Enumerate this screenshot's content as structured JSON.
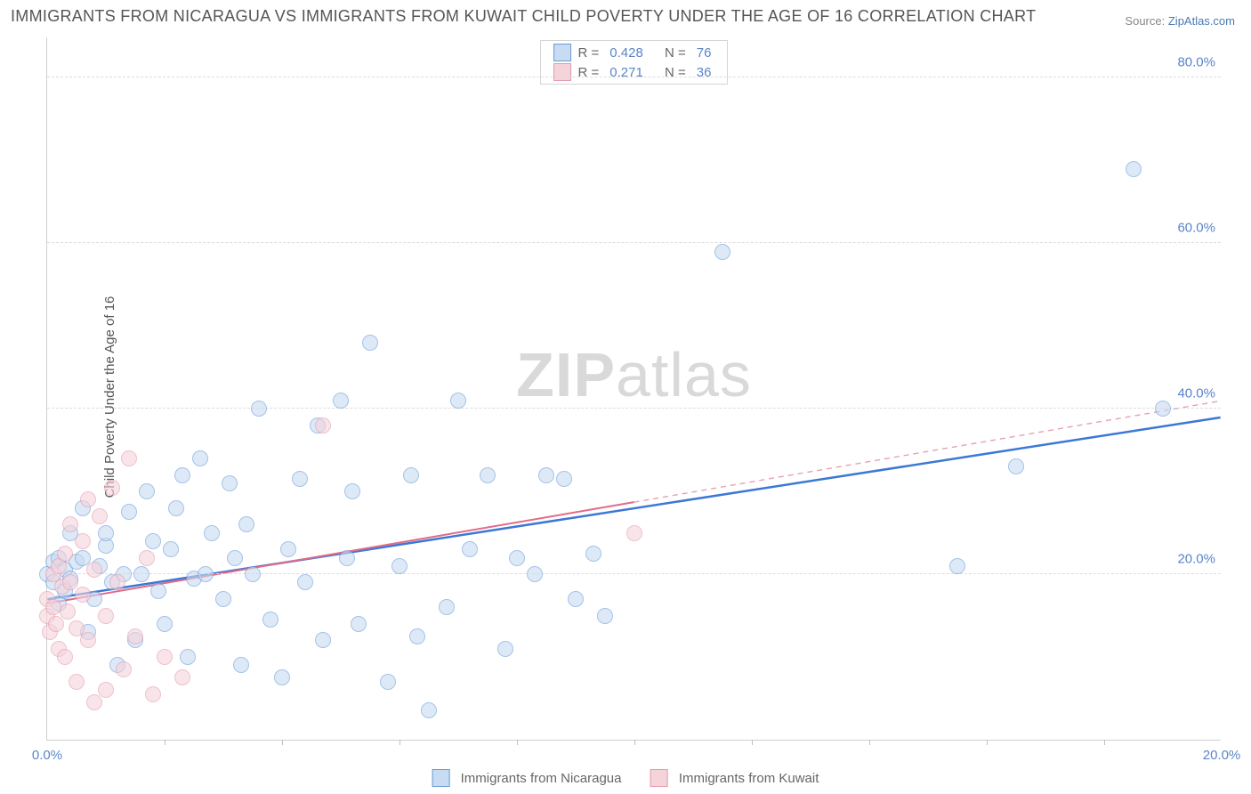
{
  "title": "IMMIGRANTS FROM NICARAGUA VS IMMIGRANTS FROM KUWAIT CHILD POVERTY UNDER THE AGE OF 16 CORRELATION CHART",
  "source_label": "Source:",
  "source_name": "ZipAtlas.com",
  "ylabel": "Child Poverty Under the Age of 16",
  "watermark_bold": "ZIP",
  "watermark_rest": "atlas",
  "chart": {
    "type": "scatter",
    "background_color": "#ffffff",
    "grid_color": "#dcdcdc",
    "axis_color": "#cfcfcf",
    "tick_color": "#5a85c9",
    "label_color": "#555555",
    "title_fontsize": 18,
    "label_fontsize": 15,
    "tick_fontsize": 15,
    "x_min": 0.0,
    "x_max": 20.0,
    "y_min": 0.0,
    "y_max": 85.0,
    "y_gridlines": [
      20.0,
      40.0,
      60.0,
      80.0
    ],
    "y_tick_labels": [
      "20.0%",
      "40.0%",
      "60.0%",
      "80.0%"
    ],
    "x_ticks_minor": [
      2,
      4,
      6,
      8,
      10,
      12,
      14,
      16,
      18
    ],
    "x_tick_left": "0.0%",
    "x_tick_right": "20.0%",
    "point_radius": 9,
    "point_border_width": 1,
    "series": [
      {
        "name": "Immigrants from Nicaragua",
        "key": "nicaragua",
        "fill": "#c7dbf2",
        "stroke": "#6a9bd8",
        "stroke_opacity": 0.9,
        "fill_opacity": 0.6,
        "trend_color": "#3b78d6",
        "trend_width": 2.5,
        "trend_dash_color": "#3b78d6",
        "R": "0.428",
        "N": "76",
        "trend_x1": 0.0,
        "trend_y1": 17.0,
        "trend_x2": 20.0,
        "trend_y2": 39.0,
        "solid_until_x": 20.0,
        "points": [
          [
            0.0,
            20.0
          ],
          [
            0.1,
            19.0
          ],
          [
            0.1,
            21.5
          ],
          [
            0.2,
            16.5
          ],
          [
            0.2,
            22.0
          ],
          [
            0.3,
            18.0
          ],
          [
            0.3,
            20.5
          ],
          [
            0.4,
            19.5
          ],
          [
            0.4,
            25.0
          ],
          [
            0.5,
            21.5
          ],
          [
            0.6,
            22.0
          ],
          [
            0.6,
            28.0
          ],
          [
            0.7,
            13.0
          ],
          [
            0.8,
            17.0
          ],
          [
            0.9,
            21.0
          ],
          [
            1.0,
            23.5
          ],
          [
            1.0,
            25.0
          ],
          [
            1.1,
            19.0
          ],
          [
            1.2,
            9.0
          ],
          [
            1.3,
            20.0
          ],
          [
            1.4,
            27.5
          ],
          [
            1.5,
            12.0
          ],
          [
            1.6,
            20.0
          ],
          [
            1.7,
            30.0
          ],
          [
            1.8,
            24.0
          ],
          [
            1.9,
            18.0
          ],
          [
            2.0,
            14.0
          ],
          [
            2.1,
            23.0
          ],
          [
            2.2,
            28.0
          ],
          [
            2.3,
            32.0
          ],
          [
            2.4,
            10.0
          ],
          [
            2.5,
            19.5
          ],
          [
            2.6,
            34.0
          ],
          [
            2.7,
            20.0
          ],
          [
            2.8,
            25.0
          ],
          [
            3.0,
            17.0
          ],
          [
            3.1,
            31.0
          ],
          [
            3.2,
            22.0
          ],
          [
            3.3,
            9.0
          ],
          [
            3.4,
            26.0
          ],
          [
            3.5,
            20.0
          ],
          [
            3.6,
            40.0
          ],
          [
            3.8,
            14.5
          ],
          [
            4.0,
            7.5
          ],
          [
            4.1,
            23.0
          ],
          [
            4.3,
            31.5
          ],
          [
            4.4,
            19.0
          ],
          [
            4.6,
            38.0
          ],
          [
            4.7,
            12.0
          ],
          [
            5.0,
            41.0
          ],
          [
            5.1,
            22.0
          ],
          [
            5.2,
            30.0
          ],
          [
            5.3,
            14.0
          ],
          [
            5.5,
            48.0
          ],
          [
            5.8,
            7.0
          ],
          [
            6.0,
            21.0
          ],
          [
            6.2,
            32.0
          ],
          [
            6.3,
            12.5
          ],
          [
            6.5,
            3.5
          ],
          [
            6.8,
            16.0
          ],
          [
            7.0,
            41.0
          ],
          [
            7.2,
            23.0
          ],
          [
            7.5,
            32.0
          ],
          [
            7.8,
            11.0
          ],
          [
            8.0,
            22.0
          ],
          [
            8.3,
            20.0
          ],
          [
            8.5,
            32.0
          ],
          [
            8.8,
            31.5
          ],
          [
            9.0,
            17.0
          ],
          [
            9.3,
            22.5
          ],
          [
            9.5,
            15.0
          ],
          [
            11.5,
            59.0
          ],
          [
            15.5,
            21.0
          ],
          [
            16.5,
            33.0
          ],
          [
            18.5,
            69.0
          ],
          [
            19.0,
            40.0
          ]
        ]
      },
      {
        "name": "Immigrants from Kuwait",
        "key": "kuwait",
        "fill": "#f5d3db",
        "stroke": "#e49aac",
        "stroke_opacity": 0.9,
        "fill_opacity": 0.6,
        "trend_color": "#e06c88",
        "trend_width": 2,
        "trend_dash_color": "#e8a0b2",
        "R": "0.271",
        "N": "36",
        "trend_x1": 0.0,
        "trend_y1": 16.5,
        "trend_x2": 20.0,
        "trend_y2": 41.0,
        "solid_until_x": 10.0,
        "points": [
          [
            0.0,
            17.0
          ],
          [
            0.0,
            15.0
          ],
          [
            0.05,
            13.0
          ],
          [
            0.1,
            16.0
          ],
          [
            0.1,
            20.0
          ],
          [
            0.15,
            14.0
          ],
          [
            0.2,
            21.0
          ],
          [
            0.2,
            11.0
          ],
          [
            0.25,
            18.5
          ],
          [
            0.3,
            22.5
          ],
          [
            0.3,
            10.0
          ],
          [
            0.35,
            15.5
          ],
          [
            0.4,
            19.0
          ],
          [
            0.4,
            26.0
          ],
          [
            0.5,
            13.5
          ],
          [
            0.5,
            7.0
          ],
          [
            0.6,
            24.0
          ],
          [
            0.6,
            17.5
          ],
          [
            0.7,
            29.0
          ],
          [
            0.7,
            12.0
          ],
          [
            0.8,
            20.5
          ],
          [
            0.8,
            4.5
          ],
          [
            0.9,
            27.0
          ],
          [
            1.0,
            15.0
          ],
          [
            1.0,
            6.0
          ],
          [
            1.1,
            30.5
          ],
          [
            1.2,
            19.0
          ],
          [
            1.3,
            8.5
          ],
          [
            1.4,
            34.0
          ],
          [
            1.5,
            12.5
          ],
          [
            1.7,
            22.0
          ],
          [
            1.8,
            5.5
          ],
          [
            2.0,
            10.0
          ],
          [
            2.3,
            7.5
          ],
          [
            4.7,
            38.0
          ],
          [
            10.0,
            25.0
          ]
        ]
      }
    ]
  },
  "legend_top": {
    "R_label": "R =",
    "N_label": "N ="
  },
  "legend_bottom": {
    "series1": "Immigrants from Nicaragua",
    "series2": "Immigrants from Kuwait"
  }
}
